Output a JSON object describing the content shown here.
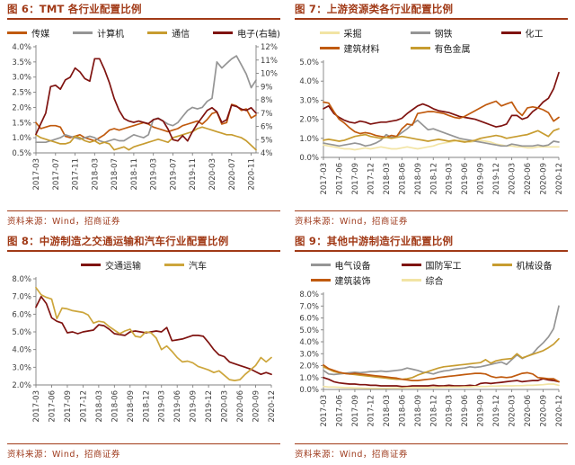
{
  "source_note": "资料来源：Wind，招商证券",
  "palette": {
    "title_red": "#A13A17",
    "maroon": "#7F1310",
    "orange": "#C05A0E",
    "gray": "#959595",
    "gold": "#C79C30",
    "pale_yellow": "#F2E4A4",
    "axis_gray": "#808080"
  },
  "chart_data": [
    {
      "type": "line",
      "title": "图 6：TMT 各行业配置比例",
      "source_note": "资料来源：Wind，招商证券",
      "x_labels": [
        "2017-03",
        "2017-07",
        "2017-11",
        "2018-03",
        "2018-07",
        "2018-11",
        "2019-03",
        "2019-07",
        "2019-11",
        "2020-03",
        "2020-07",
        "2020-11"
      ],
      "x_tick_step": 4,
      "n_points": 46,
      "y_left": {
        "min": 0.5,
        "max": 4.0,
        "tick_labels": [
          "4.0%",
          "3.5%",
          "3.0%",
          "2.5%",
          "2.0%",
          "1.5%",
          "1.0%",
          "0.5%"
        ]
      },
      "y_right": {
        "min": 4,
        "max": 12,
        "tick_labels": [
          "12%",
          "11%",
          "10%",
          "9%",
          "8%",
          "7%",
          "6%",
          "5%",
          "4%"
        ]
      },
      "series": [
        {
          "name": "传媒",
          "color": "#C05A0E",
          "axis": "left",
          "values": [
            1.5,
            1.3,
            1.35,
            1.4,
            1.4,
            1.35,
            1.05,
            1.0,
            1.05,
            1.1,
            1.0,
            0.95,
            0.9,
            1.0,
            1.1,
            1.25,
            1.3,
            1.25,
            1.3,
            1.35,
            1.4,
            1.45,
            1.5,
            1.45,
            1.35,
            1.3,
            1.25,
            1.2,
            1.25,
            1.3,
            1.4,
            1.45,
            1.5,
            1.55,
            1.45,
            1.6,
            1.8,
            1.85,
            1.45,
            1.5,
            2.1,
            2.05,
            1.9,
            1.95,
            1.65,
            1.75
          ]
        },
        {
          "name": "计算机",
          "color": "#959595",
          "axis": "left",
          "values": [
            0.85,
            0.85,
            0.85,
            0.9,
            0.95,
            1.0,
            1.1,
            1.05,
            1.0,
            0.95,
            1.0,
            1.05,
            1.0,
            0.9,
            0.85,
            0.9,
            0.95,
            0.9,
            0.9,
            1.0,
            1.1,
            1.05,
            1.0,
            1.1,
            1.6,
            1.65,
            1.55,
            1.45,
            1.4,
            1.5,
            1.7,
            1.9,
            2.0,
            1.95,
            2.0,
            2.2,
            2.3,
            3.5,
            3.3,
            3.45,
            3.6,
            3.7,
            3.4,
            3.1,
            2.65,
            2.9
          ]
        },
        {
          "name": "通信",
          "color": "#C79C30",
          "axis": "left",
          "values": [
            1.1,
            1.0,
            0.95,
            0.9,
            0.85,
            0.8,
            0.8,
            0.85,
            1.05,
            1.0,
            0.9,
            0.85,
            0.9,
            0.8,
            0.85,
            0.8,
            0.6,
            0.65,
            0.7,
            0.6,
            0.7,
            0.75,
            0.8,
            0.85,
            0.9,
            0.95,
            0.9,
            0.85,
            1.0,
            1.05,
            1.1,
            1.15,
            1.2,
            1.3,
            1.35,
            1.3,
            1.25,
            1.2,
            1.15,
            1.1,
            1.1,
            1.05,
            1.0,
            0.9,
            0.75,
            0.6
          ]
        },
        {
          "name": "电子(右轴)",
          "color": "#7F1310",
          "axis": "right",
          "values": [
            5.4,
            6.2,
            7.0,
            9.0,
            9.1,
            8.8,
            9.5,
            9.7,
            10.4,
            10.1,
            9.6,
            9.4,
            11.1,
            11.1,
            10.3,
            9.3,
            8.1,
            7.2,
            6.6,
            6.4,
            6.3,
            6.4,
            6.3,
            6.2,
            6.5,
            6.6,
            6.4,
            5.8,
            5.0,
            4.9,
            5.3,
            4.9,
            5.6,
            6.2,
            6.7,
            7.2,
            7.4,
            7.1,
            6.3,
            6.5,
            7.6,
            7.5,
            7.3,
            7.2,
            7.4,
            7.0
          ]
        }
      ]
    },
    {
      "type": "line",
      "title": "图 7：上游资源类各行业配置比例",
      "source_note": "资料来源：Wind，招商证券",
      "x_labels": [
        "2017-03",
        "2017-06",
        "2017-09",
        "2017-12",
        "2018-03",
        "2018-06",
        "2018-09",
        "2018-12",
        "2019-03",
        "2019-06",
        "2019-09",
        "2019-12",
        "2020-03",
        "2020-06",
        "2020-09",
        "2020-12"
      ],
      "x_tick_step": 3,
      "n_points": 46,
      "y_left": {
        "min": 0.0,
        "max": 5.0,
        "tick_labels": [
          "5.0%",
          "4.0%",
          "3.0%",
          "2.0%",
          "1.0%",
          "0.0%"
        ]
      },
      "series": [
        {
          "name": "采掘",
          "color": "#F2E4A4",
          "axis": "left",
          "values": [
            0.65,
            0.6,
            0.55,
            0.5,
            0.45,
            0.45,
            0.4,
            0.45,
            0.5,
            0.45,
            0.5,
            0.55,
            0.5,
            0.45,
            0.45,
            0.5,
            0.55,
            0.5,
            0.45,
            0.5,
            0.55,
            0.6,
            0.7,
            0.75,
            0.8,
            0.85,
            0.9,
            0.85,
            0.8,
            0.85,
            0.9,
            0.85,
            0.8,
            0.7,
            0.65,
            0.6,
            0.6,
            0.55,
            0.55,
            0.5,
            0.5,
            0.55,
            0.55,
            0.55,
            0.55,
            0.55
          ]
        },
        {
          "name": "钢铁",
          "color": "#959595",
          "axis": "left",
          "values": [
            0.75,
            0.7,
            0.65,
            0.6,
            0.65,
            0.7,
            0.75,
            0.7,
            0.6,
            0.65,
            0.75,
            0.9,
            1.2,
            1.05,
            1.1,
            1.3,
            1.5,
            1.75,
            1.95,
            1.7,
            1.45,
            1.5,
            1.4,
            1.3,
            1.2,
            1.1,
            1.0,
            0.95,
            0.9,
            0.85,
            0.8,
            0.75,
            0.7,
            0.65,
            0.6,
            0.6,
            0.7,
            0.65,
            0.6,
            0.6,
            0.6,
            0.65,
            0.6,
            0.65,
            0.85,
            0.8
          ]
        },
        {
          "name": "化工",
          "color": "#7F1310",
          "axis": "left",
          "values": [
            2.55,
            2.7,
            2.3,
            2.1,
            1.95,
            1.85,
            1.8,
            1.9,
            1.85,
            1.75,
            1.8,
            1.85,
            1.85,
            1.9,
            1.95,
            2.05,
            2.3,
            2.5,
            2.7,
            2.8,
            2.7,
            2.55,
            2.45,
            2.4,
            2.35,
            2.25,
            2.15,
            2.1,
            2.05,
            2.0,
            1.9,
            1.8,
            1.7,
            1.6,
            1.65,
            1.75,
            2.2,
            2.2,
            2.0,
            2.1,
            2.4,
            2.6,
            2.9,
            3.1,
            3.6,
            4.45
          ]
        },
        {
          "name": "建筑材料",
          "color": "#C05A0E",
          "axis": "left",
          "values": [
            2.9,
            2.85,
            2.4,
            2.0,
            1.8,
            1.55,
            1.35,
            1.25,
            1.3,
            1.25,
            1.15,
            1.1,
            1.05,
            1.15,
            1.1,
            1.5,
            1.75,
            1.7,
            2.3,
            2.35,
            2.4,
            2.4,
            2.35,
            2.3,
            2.2,
            2.1,
            2.05,
            2.15,
            2.3,
            2.45,
            2.6,
            2.75,
            2.85,
            2.95,
            2.7,
            2.8,
            2.9,
            2.45,
            2.2,
            2.6,
            2.65,
            2.6,
            2.5,
            2.35,
            1.9,
            2.1
          ]
        },
        {
          "name": "有色金属",
          "color": "#C79C30",
          "axis": "left",
          "values": [
            0.9,
            0.95,
            0.9,
            0.85,
            0.9,
            1.0,
            1.1,
            1.15,
            1.2,
            1.1,
            1.05,
            1.0,
            1.05,
            1.0,
            1.05,
            1.1,
            1.05,
            1.0,
            0.95,
            0.9,
            0.85,
            0.9,
            0.95,
            0.9,
            0.85,
            0.9,
            0.85,
            0.8,
            0.85,
            0.9,
            1.0,
            1.05,
            1.1,
            1.15,
            1.1,
            1.0,
            1.05,
            1.1,
            1.15,
            1.2,
            1.3,
            1.4,
            1.25,
            1.1,
            1.4,
            1.5
          ]
        }
      ]
    },
    {
      "type": "line",
      "title": "图 8：中游制造之交通运输和汽车行业配置比例",
      "source_note": "资料来源：Wind，招商证券",
      "x_labels": [
        "2017-03",
        "2017-06",
        "2017-09",
        "2017-12",
        "2018-03",
        "2018-06",
        "2018-09",
        "2018-12",
        "2019-03",
        "2019-06",
        "2019-09",
        "2019-12",
        "2020-03",
        "2020-06",
        "2020-09",
        "2020-12"
      ],
      "x_tick_step": 3,
      "n_points": 46,
      "y_left": {
        "min": 2.0,
        "max": 8.0,
        "tick_labels": [
          "8.0%",
          "7.0%",
          "6.0%",
          "5.0%",
          "4.0%",
          "3.0%",
          "2.0%"
        ]
      },
      "series": [
        {
          "name": "交通运输",
          "color": "#7F1310",
          "axis": "left",
          "values": [
            6.4,
            7.0,
            6.6,
            5.8,
            5.6,
            5.5,
            4.95,
            5.0,
            4.9,
            5.0,
            5.05,
            5.1,
            5.4,
            5.35,
            5.15,
            4.9,
            4.85,
            4.8,
            5.0,
            5.05,
            5.0,
            4.95,
            5.0,
            5.05,
            5.0,
            5.25,
            4.5,
            4.55,
            4.6,
            4.7,
            4.8,
            4.8,
            4.75,
            4.4,
            4.0,
            3.7,
            3.6,
            3.3,
            3.2,
            3.1,
            3.0,
            2.9,
            2.75,
            2.6,
            2.7,
            2.6
          ]
        },
        {
          "name": "汽车",
          "color": "#CDA63C",
          "axis": "left",
          "values": [
            7.5,
            7.1,
            6.95,
            6.85,
            5.75,
            6.35,
            6.3,
            6.2,
            6.15,
            6.1,
            5.95,
            5.5,
            5.6,
            5.55,
            5.3,
            5.1,
            4.9,
            5.05,
            5.15,
            4.75,
            4.7,
            5.0,
            4.95,
            4.65,
            4.0,
            4.2,
            3.9,
            3.55,
            3.3,
            3.35,
            3.25,
            3.05,
            2.95,
            2.85,
            2.7,
            2.8,
            2.55,
            2.3,
            2.25,
            2.3,
            2.6,
            2.85,
            3.1,
            3.55,
            3.3,
            3.55
          ]
        }
      ]
    },
    {
      "type": "line",
      "title": "图 9：其他中游制造行业配置比例",
      "source_note": "资料来源：Wind，招商证券",
      "x_labels": [
        "2017-03",
        "2017-06",
        "2017-09",
        "2017-12",
        "2018-03",
        "2018-06",
        "2018-09",
        "2018-12",
        "2019-03",
        "2019-06",
        "2019-09",
        "2019-12",
        "2020-03",
        "2020-06",
        "2020-09",
        "2020-12"
      ],
      "x_tick_step": 3,
      "n_points": 46,
      "y_left": {
        "min": 0.0,
        "max": 8.0,
        "tick_labels": [
          "8.0%",
          "7.0%",
          "6.0%",
          "5.0%",
          "4.0%",
          "3.0%",
          "2.0%",
          "1.0%",
          "0.0%"
        ]
      },
      "series": [
        {
          "name": "电气设备",
          "color": "#959595",
          "axis": "left",
          "values": [
            1.6,
            1.3,
            1.25,
            1.3,
            1.35,
            1.4,
            1.45,
            1.4,
            1.45,
            1.5,
            1.5,
            1.55,
            1.5,
            1.55,
            1.6,
            1.65,
            1.8,
            1.7,
            1.6,
            1.45,
            1.4,
            1.3,
            1.45,
            1.55,
            1.6,
            1.7,
            1.75,
            1.8,
            1.9,
            1.85,
            1.9,
            2.0,
            2.1,
            2.2,
            2.3,
            2.1,
            2.5,
            2.9,
            2.6,
            2.8,
            3.0,
            3.5,
            3.9,
            4.4,
            5.1,
            7.0
          ]
        },
        {
          "name": "国防军工",
          "color": "#7F1310",
          "axis": "left",
          "values": [
            1.0,
            0.85,
            0.65,
            0.55,
            0.5,
            0.45,
            0.45,
            0.4,
            0.4,
            0.35,
            0.35,
            0.3,
            0.3,
            0.3,
            0.3,
            0.25,
            0.25,
            0.3,
            0.3,
            0.3,
            0.3,
            0.35,
            0.3,
            0.3,
            0.35,
            0.3,
            0.3,
            0.3,
            0.35,
            0.3,
            0.5,
            0.55,
            0.5,
            0.55,
            0.6,
            0.65,
            0.7,
            0.75,
            0.65,
            0.7,
            0.75,
            0.75,
            0.9,
            0.8,
            0.75,
            0.65
          ]
        },
        {
          "name": "机械设备",
          "color": "#C79C30",
          "axis": "left",
          "values": [
            1.9,
            1.7,
            1.5,
            1.4,
            1.35,
            1.3,
            1.25,
            1.2,
            1.15,
            1.1,
            1.05,
            1.0,
            0.95,
            0.9,
            0.85,
            0.85,
            0.9,
            1.0,
            1.2,
            1.35,
            1.5,
            1.65,
            1.8,
            1.9,
            1.95,
            2.0,
            2.05,
            2.1,
            2.15,
            2.2,
            2.25,
            2.5,
            2.2,
            2.4,
            2.5,
            2.55,
            2.6,
            3.0,
            2.65,
            2.8,
            2.95,
            3.1,
            3.25,
            3.5,
            3.8,
            4.25
          ]
        },
        {
          "name": "建筑装饰",
          "color": "#C05A0E",
          "axis": "left",
          "values": [
            2.05,
            1.75,
            1.6,
            1.45,
            1.35,
            1.3,
            1.35,
            1.3,
            1.25,
            1.2,
            1.15,
            1.1,
            1.05,
            1.0,
            0.95,
            0.85,
            0.8,
            0.75,
            0.75,
            0.8,
            0.85,
            0.9,
            1.0,
            1.05,
            1.1,
            1.15,
            1.2,
            1.25,
            1.3,
            1.35,
            1.35,
            1.3,
            1.1,
            1.0,
            1.05,
            1.0,
            1.05,
            1.2,
            1.35,
            1.4,
            1.3,
            1.0,
            0.95,
            0.9,
            0.9,
            0.65
          ]
        },
        {
          "name": "综合",
          "color": "#F2E4A4",
          "axis": "left",
          "values": [
            0.25,
            0.2,
            0.2,
            0.18,
            0.15,
            0.15,
            0.12,
            0.12,
            0.1,
            0.1,
            0.1,
            0.1,
            0.1,
            0.12,
            0.12,
            0.12,
            0.15,
            0.15,
            0.15,
            0.15,
            0.15,
            0.18,
            0.18,
            0.2,
            0.2,
            0.2,
            0.2,
            0.22,
            0.22,
            0.25,
            0.25,
            0.25,
            0.28,
            0.28,
            0.3,
            0.3,
            0.3,
            0.32,
            0.32,
            0.35,
            0.35,
            0.38,
            0.4,
            0.45,
            0.45,
            0.35
          ]
        }
      ]
    }
  ]
}
